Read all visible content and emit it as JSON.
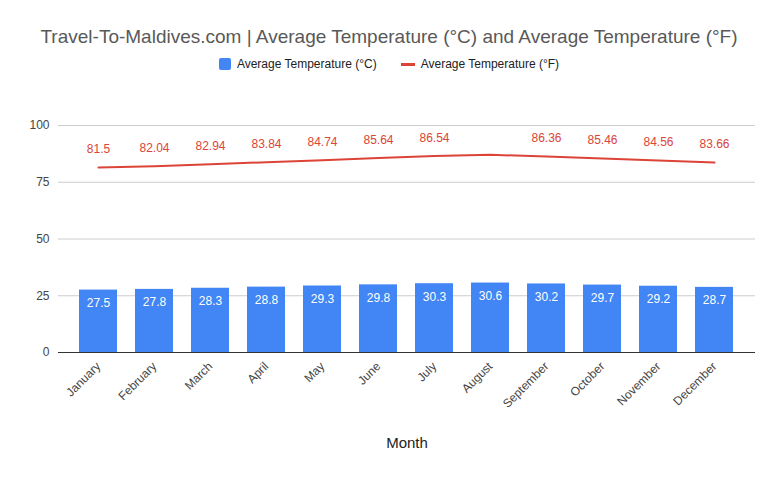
{
  "chart_data": {
    "type": "bar",
    "title": "Travel-To-Maldives.com | Average Temperature (°C) and Average Temperature (°F)",
    "x_label": "Month",
    "categories": [
      "January",
      "February",
      "March",
      "April",
      "May",
      "June",
      "July",
      "August",
      "September",
      "October",
      "November",
      "December"
    ],
    "series": [
      {
        "name": "Average Temperature (°C)",
        "type": "bar",
        "color": "#4285f4",
        "values": [
          27.5,
          27.8,
          28.3,
          28.8,
          29.3,
          29.8,
          30.3,
          30.6,
          30.2,
          29.7,
          29.2,
          28.7
        ]
      },
      {
        "name": "Average Temperature (°F)",
        "type": "line",
        "color": "#db4437",
        "values": [
          81.5,
          82.04,
          82.94,
          83.84,
          84.74,
          85.64,
          86.54,
          87.08,
          86.36,
          85.46,
          84.56,
          83.66
        ],
        "value_labels": [
          "81.5",
          "82.04",
          "82.94",
          "83.84",
          "84.74",
          "85.64",
          "86.54",
          null,
          "86.36",
          "85.46",
          "84.56",
          "83.66"
        ]
      }
    ],
    "ylim": [
      0,
      100
    ],
    "yticks": [
      0,
      25,
      50,
      75,
      100
    ],
    "grid": true,
    "legend": "top",
    "data_labels": true
  }
}
